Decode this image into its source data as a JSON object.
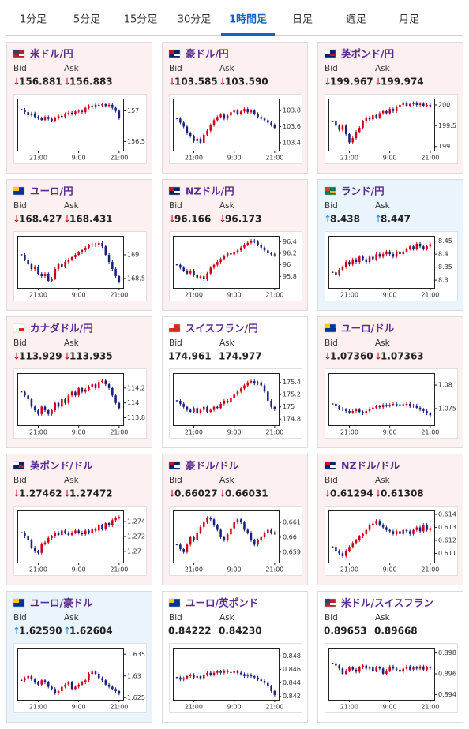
{
  "tabs": [
    "1分足",
    "5分足",
    "15分足",
    "30分足",
    "1時間足",
    "日足",
    "週足",
    "月足"
  ],
  "active_tab": 4,
  "labels": {
    "bid": "Bid",
    "ask": "Ask"
  },
  "up_color": "#d0021b",
  "down_color": "#1a237e",
  "tiles": [
    {
      "name": "米ドル/円",
      "background": "#fdf0f0",
      "bid_arrow": "↓",
      "bid": "156.881",
      "ask_arrow": "↓",
      "ask": "156.883",
      "chart": {
        "type": "candlestick",
        "ylim": [
          156.35,
          157.2
        ],
        "yticks": [
          157,
          156.5
        ],
        "xticks": [
          {
            "value": 5,
            "label": "21:00"
          },
          {
            "value": 17,
            "label": "9:00"
          },
          {
            "value": 29,
            "label": "21:00"
          }
        ],
        "values": [
          157.02,
          156.98,
          156.93,
          156.96,
          156.9,
          156.88,
          156.85,
          156.9,
          156.87,
          156.84,
          156.88,
          156.92,
          156.9,
          156.95,
          156.97,
          156.95,
          156.99,
          157.0,
          156.98,
          157.05,
          157.08,
          157.06,
          157.1,
          157.09,
          157.11,
          157.08,
          157.1,
          157.05,
          157.0,
          156.88
        ]
      }
    },
    {
      "name": "豪ドル/円",
      "background": "#fdf0f0",
      "bid_arrow": "↓",
      "bid": "103.585",
      "ask_arrow": "↓",
      "ask": "103.590",
      "chart": {
        "type": "candlestick",
        "ylim": [
          103.3,
          103.95
        ],
        "yticks": [
          103.8,
          103.6,
          103.4
        ],
        "xticks": [
          {
            "value": 5,
            "label": "21:00"
          },
          {
            "value": 17,
            "label": "9:00"
          },
          {
            "value": 29,
            "label": "21:00"
          }
        ],
        "values": [
          103.7,
          103.65,
          103.6,
          103.52,
          103.48,
          103.42,
          103.45,
          103.4,
          103.5,
          103.55,
          103.62,
          103.68,
          103.72,
          103.75,
          103.7,
          103.74,
          103.78,
          103.8,
          103.76,
          103.79,
          103.82,
          103.78,
          103.8,
          103.76,
          103.72,
          103.7,
          103.68,
          103.65,
          103.62,
          103.585
        ]
      }
    },
    {
      "name": "英ポンド/円",
      "background": "#fdf0f0",
      "bid_arrow": "↓",
      "bid": "199.967",
      "ask_arrow": "↓",
      "ask": "199.974",
      "chart": {
        "type": "candlestick",
        "ylim": [
          198.9,
          200.15
        ],
        "yticks": [
          200,
          199.5,
          199
        ],
        "xticks": [
          {
            "value": 5,
            "label": "21:00"
          },
          {
            "value": 17,
            "label": "9:00"
          },
          {
            "value": 29,
            "label": "21:00"
          }
        ],
        "values": [
          199.6,
          199.5,
          199.4,
          199.5,
          199.3,
          199.1,
          199.2,
          199.35,
          199.45,
          199.6,
          199.7,
          199.65,
          199.75,
          199.7,
          199.8,
          199.85,
          199.8,
          199.9,
          199.85,
          199.95,
          200.0,
          200.05,
          199.98,
          200.02,
          200.05,
          200.0,
          200.03,
          199.98,
          200.0,
          199.967
        ]
      }
    },
    {
      "name": "ユーロ/円",
      "background": "#fdf0f0",
      "bid_arrow": "↓",
      "bid": "168.427",
      "ask_arrow": "↓",
      "ask": "168.431",
      "chart": {
        "type": "candlestick",
        "ylim": [
          168.3,
          169.4
        ],
        "yticks": [
          169,
          168.5
        ],
        "xticks": [
          {
            "value": 5,
            "label": "21:00"
          },
          {
            "value": 17,
            "label": "9:00"
          },
          {
            "value": 29,
            "label": "21:00"
          }
        ],
        "values": [
          169.0,
          168.9,
          168.8,
          168.7,
          168.75,
          168.6,
          168.55,
          168.6,
          168.45,
          168.5,
          168.7,
          168.8,
          168.75,
          168.85,
          168.9,
          168.95,
          169.0,
          169.05,
          169.1,
          169.15,
          169.2,
          169.22,
          169.2,
          169.25,
          169.18,
          169.0,
          168.85,
          168.7,
          168.55,
          168.427
        ]
      }
    },
    {
      "name": "NZドル/円",
      "background": "#fdf0f0",
      "bid_arrow": "↓",
      "bid": "96.166",
      "ask_arrow": "↓",
      "ask": "96.173",
      "chart": {
        "type": "candlestick",
        "ylim": [
          95.6,
          96.5
        ],
        "yticks": [
          96.4,
          96.2,
          96,
          95.8
        ],
        "xticks": [
          {
            "value": 5,
            "label": "21:00"
          },
          {
            "value": 17,
            "label": "9:00"
          },
          {
            "value": 29,
            "label": "21:00"
          }
        ],
        "values": [
          96.0,
          95.95,
          95.9,
          95.85,
          95.9,
          95.82,
          95.78,
          95.8,
          95.75,
          95.85,
          95.95,
          96.0,
          96.05,
          96.1,
          96.15,
          96.2,
          96.18,
          96.22,
          96.25,
          96.3,
          96.35,
          96.38,
          96.42,
          96.4,
          96.35,
          96.3,
          96.25,
          96.2,
          96.18,
          96.166
        ]
      }
    },
    {
      "name": "ランド/円",
      "background": "#eaf4fc",
      "bid_arrow": "↑",
      "bid": "8.438",
      "ask_arrow": "↑",
      "ask": "8.447",
      "chart": {
        "type": "candlestick",
        "ylim": [
          8.27,
          8.47
        ],
        "yticks": [
          8.45,
          8.4,
          8.35,
          8.3
        ],
        "xticks": [
          {
            "value": 5,
            "label": "21:00"
          },
          {
            "value": 17,
            "label": "9:00"
          },
          {
            "value": 29,
            "label": "21:00"
          }
        ],
        "values": [
          8.33,
          8.32,
          8.34,
          8.35,
          8.37,
          8.36,
          8.38,
          8.37,
          8.39,
          8.38,
          8.37,
          8.39,
          8.38,
          8.4,
          8.39,
          8.4,
          8.41,
          8.4,
          8.39,
          8.41,
          8.4,
          8.41,
          8.42,
          8.43,
          8.42,
          8.44,
          8.43,
          8.42,
          8.43,
          8.438
        ]
      }
    },
    {
      "name": "カナダドル/円",
      "background": "#fdf0f0",
      "bid_arrow": "↓",
      "bid": "113.929",
      "ask_arrow": "↓",
      "ask": "113.935",
      "chart": {
        "type": "candlestick",
        "ylim": [
          113.7,
          114.4
        ],
        "yticks": [
          114.2,
          114,
          113.8
        ],
        "xticks": [
          {
            "value": 5,
            "label": "21:00"
          },
          {
            "value": 17,
            "label": "9:00"
          },
          {
            "value": 29,
            "label": "21:00"
          }
        ],
        "values": [
          114.15,
          114.1,
          114.05,
          113.95,
          113.9,
          113.85,
          113.95,
          113.9,
          113.85,
          113.9,
          114.0,
          113.95,
          114.05,
          114.0,
          114.1,
          114.15,
          114.1,
          114.2,
          114.15,
          114.18,
          114.22,
          114.25,
          114.2,
          114.28,
          114.3,
          114.25,
          114.2,
          114.1,
          114.0,
          113.929
        ]
      }
    },
    {
      "name": "スイスフラン/円",
      "background": "#ffffff",
      "bid": "174.961",
      "ask": "174.977",
      "chart": {
        "type": "candlestick",
        "ylim": [
          174.7,
          175.55
        ],
        "yticks": [
          175.4,
          175.2,
          175,
          174.8
        ],
        "xticks": [
          {
            "value": 5,
            "label": "21:00"
          },
          {
            "value": 17,
            "label": "9:00"
          },
          {
            "value": 29,
            "label": "21:00"
          }
        ],
        "values": [
          175.1,
          175.05,
          175.0,
          174.95,
          174.92,
          174.98,
          174.9,
          174.95,
          175.0,
          174.92,
          174.95,
          175.0,
          174.98,
          175.05,
          175.1,
          175.08,
          175.15,
          175.2,
          175.25,
          175.3,
          175.35,
          175.4,
          175.42,
          175.38,
          175.4,
          175.35,
          175.25,
          175.1,
          175.0,
          174.961
        ]
      }
    },
    {
      "name": "ユーロ/ドル",
      "background": "#fdf0f0",
      "bid_arrow": "↓",
      "bid": "1.07360",
      "ask_arrow": "↓",
      "ask": "1.07363",
      "chart": {
        "type": "candlestick",
        "ylim": [
          1.0715,
          1.0825
        ],
        "yticks": [
          1.08,
          1.075
        ],
        "xticks": [
          {
            "value": 5,
            "label": "21:00"
          },
          {
            "value": 17,
            "label": "9:00"
          },
          {
            "value": 29,
            "label": "21:00"
          }
        ],
        "values": [
          1.076,
          1.0755,
          1.075,
          1.0748,
          1.0745,
          1.0742,
          1.0745,
          1.0748,
          1.0743,
          1.074,
          1.0745,
          1.075,
          1.0752,
          1.0755,
          1.0753,
          1.0758,
          1.0756,
          1.0758,
          1.076,
          1.0757,
          1.0759,
          1.0758,
          1.076,
          1.0755,
          1.0757,
          1.0752,
          1.0748,
          1.0745,
          1.074,
          1.0736
        ]
      }
    },
    {
      "name": "英ポンド/ドル",
      "background": "#fdf0f0",
      "bid_arrow": "↓",
      "bid": "1.27462",
      "ask_arrow": "↓",
      "ask": "1.27472",
      "chart": {
        "type": "candlestick",
        "ylim": [
          1.2685,
          1.2755
        ],
        "yticks": [
          1.274,
          1.272,
          1.27
        ],
        "xticks": [
          {
            "value": 5,
            "label": "21:00"
          },
          {
            "value": 17,
            "label": "9:00"
          },
          {
            "value": 29,
            "label": "21:00"
          }
        ],
        "values": [
          1.2725,
          1.272,
          1.2715,
          1.2705,
          1.27,
          1.2698,
          1.271,
          1.2712,
          1.2718,
          1.272,
          1.2725,
          1.2722,
          1.2728,
          1.2725,
          1.2722,
          1.2725,
          1.2728,
          1.2725,
          1.2723,
          1.2728,
          1.2725,
          1.273,
          1.2728,
          1.2735,
          1.273,
          1.2738,
          1.2735,
          1.2742,
          1.2745,
          1.27462
        ]
      }
    },
    {
      "name": "豪ドル/ドル",
      "background": "#fdf0f0",
      "bid_arrow": "↓",
      "bid": "0.66027",
      "ask_arrow": "↓",
      "ask": "0.66031",
      "chart": {
        "type": "candlestick",
        "ylim": [
          0.6583,
          0.6618
        ],
        "yticks": [
          0.661,
          0.66,
          0.659
        ],
        "xticks": [
          {
            "value": 5,
            "label": "21:00"
          },
          {
            "value": 17,
            "label": "9:00"
          },
          {
            "value": 29,
            "label": "21:00"
          }
        ],
        "values": [
          0.6595,
          0.6592,
          0.659,
          0.6595,
          0.66,
          0.6598,
          0.6603,
          0.6607,
          0.661,
          0.6613,
          0.6612,
          0.6608,
          0.6605,
          0.66,
          0.6598,
          0.6602,
          0.6606,
          0.661,
          0.6612,
          0.661,
          0.6605,
          0.6603,
          0.6598,
          0.6595,
          0.6598,
          0.66,
          0.6603,
          0.6605,
          0.6603,
          0.66027
        ]
      }
    },
    {
      "name": "NZドル/ドル",
      "background": "#fdf0f0",
      "bid_arrow": "↓",
      "bid": "0.61294",
      "ask_arrow": "↓",
      "ask": "0.61308",
      "chart": {
        "type": "candlestick",
        "ylim": [
          0.6103,
          0.6143
        ],
        "yticks": [
          0.614,
          0.613,
          0.612,
          0.611
        ],
        "xticks": [
          {
            "value": 5,
            "label": "21:00"
          },
          {
            "value": 17,
            "label": "9:00"
          },
          {
            "value": 29,
            "label": "21:00"
          }
        ],
        "values": [
          0.6115,
          0.6112,
          0.611,
          0.6108,
          0.6112,
          0.6115,
          0.6118,
          0.612,
          0.6123,
          0.6125,
          0.6128,
          0.6132,
          0.6133,
          0.6135,
          0.6132,
          0.613,
          0.6128,
          0.6127,
          0.6125,
          0.6127,
          0.6125,
          0.6128,
          0.6127,
          0.6125,
          0.6128,
          0.613,
          0.6127,
          0.6132,
          0.6128,
          0.61294
        ]
      }
    },
    {
      "name": "ユーロ/豪ドル",
      "background": "#eaf4fc",
      "bid_arrow": "↑",
      "bid": "1.62590",
      "ask_arrow": "↑",
      "ask": "1.62604",
      "chart": {
        "type": "candlestick",
        "ylim": [
          1.6245,
          1.6365
        ],
        "yticks": [
          1.635,
          1.63,
          1.625
        ],
        "xticks": [
          {
            "value": 5,
            "label": "21:00"
          },
          {
            "value": 17,
            "label": "9:00"
          },
          {
            "value": 29,
            "label": "21:00"
          }
        ],
        "values": [
          1.629,
          1.6295,
          1.63,
          1.6292,
          1.6285,
          1.628,
          1.629,
          1.6285,
          1.6275,
          1.627,
          1.626,
          1.6265,
          1.6275,
          1.628,
          1.6285,
          1.627,
          1.6275,
          1.628,
          1.6285,
          1.629,
          1.6305,
          1.631,
          1.6305,
          1.6295,
          1.629,
          1.628,
          1.6275,
          1.627,
          1.6265,
          1.6259
        ]
      }
    },
    {
      "name": "ユーロ/英ポンド",
      "background": "#ffffff",
      "bid": "0.84222",
      "ask": "0.84230",
      "chart": {
        "type": "candlestick",
        "ylim": [
          0.8415,
          0.8492
        ],
        "yticks": [
          0.848,
          0.846,
          0.844,
          0.842
        ],
        "xticks": [
          {
            "value": 5,
            "label": "21:00"
          },
          {
            "value": 17,
            "label": "9:00"
          },
          {
            "value": 29,
            "label": "21:00"
          }
        ],
        "values": [
          0.8448,
          0.8445,
          0.8447,
          0.845,
          0.8452,
          0.8448,
          0.845,
          0.8447,
          0.8452,
          0.8455,
          0.8452,
          0.8455,
          0.8457,
          0.8455,
          0.8458,
          0.8456,
          0.8455,
          0.8457,
          0.8455,
          0.8453,
          0.845,
          0.8452,
          0.845,
          0.8448,
          0.8445,
          0.8443,
          0.844,
          0.8435,
          0.8428,
          0.84222
        ]
      }
    },
    {
      "name": "米ドル/スイスフラン",
      "background": "#ffffff",
      "bid": "0.89653",
      "ask": "0.89668",
      "chart": {
        "type": "candlestick",
        "ylim": [
          0.8935,
          0.8985
        ],
        "yticks": [
          0.898,
          0.896,
          0.894
        ],
        "xticks": [
          {
            "value": 5,
            "label": "21:00"
          },
          {
            "value": 17,
            "label": "9:00"
          },
          {
            "value": 29,
            "label": "21:00"
          }
        ],
        "values": [
          0.897,
          0.8968,
          0.8965,
          0.896,
          0.8963,
          0.8966,
          0.8964,
          0.8962,
          0.8966,
          0.8968,
          0.8965,
          0.8966,
          0.8963,
          0.8966,
          0.8965,
          0.896,
          0.8963,
          0.8967,
          0.8965,
          0.8964,
          0.8962,
          0.8965,
          0.8967,
          0.8964,
          0.8966,
          0.8965,
          0.8967,
          0.8964,
          0.8966,
          0.89653
        ]
      }
    }
  ]
}
